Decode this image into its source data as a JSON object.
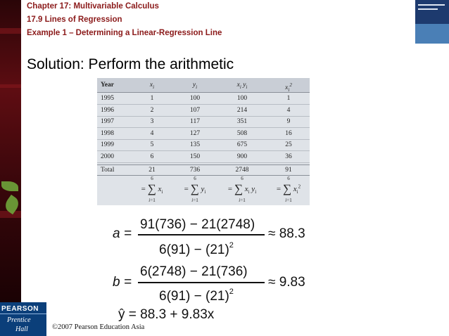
{
  "header": {
    "chapter": "Chapter 17: Multivariable Calculus",
    "section": "17.9 Lines of Regression",
    "example": "Example 1 – Determining a Linear-Regression Line"
  },
  "title": "Solution: Perform the arithmetic",
  "table": {
    "headers": [
      "Year",
      "xi",
      "yi",
      "xi yi",
      "xi2"
    ],
    "rows": [
      [
        "1995",
        "1",
        "100",
        "100",
        "1"
      ],
      [
        "1996",
        "2",
        "107",
        "214",
        "4"
      ],
      [
        "1997",
        "3",
        "117",
        "351",
        "9"
      ],
      [
        "1998",
        "4",
        "127",
        "508",
        "16"
      ],
      [
        "1999",
        "5",
        "135",
        "675",
        "25"
      ],
      [
        "2000",
        "6",
        "150",
        "900",
        "36"
      ]
    ],
    "total": [
      "Total",
      "21",
      "736",
      "2748",
      "91"
    ],
    "sums": [
      {
        "upper": "6",
        "lower": "i=1",
        "term": "xi"
      },
      {
        "upper": "6",
        "lower": "i=1",
        "term": "yi"
      },
      {
        "upper": "6",
        "lower": "i=1",
        "term": "xi yi"
      },
      {
        "upper": "6",
        "lower": "i=1",
        "term": "xi2"
      }
    ]
  },
  "equations": {
    "a_lhs": "a =",
    "a_num": "91(736) − 21(2748)",
    "a_den": "6(91) − (21)",
    "a_exp": "2",
    "a_result": "≈ 88.3",
    "b_lhs": "b =",
    "b_num": "6(2748) − 21(736)",
    "b_den": "6(91) − (21)",
    "b_exp": "2",
    "b_result": "≈ 9.83",
    "y_hat": "ŷ = 88.3 + 9.83x"
  },
  "footer": {
    "logo_line1": "PEARSON",
    "logo_line2": "Prentice",
    "logo_line3": "Hall",
    "copyright": "©2007 Pearson Education Asia"
  },
  "colors": {
    "header_text": "#8b1a1a",
    "sidebar": "#5e0d12",
    "table_bg": "#dfe3e8",
    "logo_bg": "#0b3f7a"
  }
}
